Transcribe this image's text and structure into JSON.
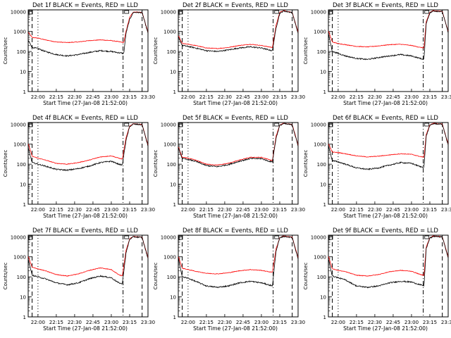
{
  "figure": {
    "layout": "3x3 grid",
    "background": "#ffffff",
    "axes_color": "#000000"
  },
  "chart_data": [
    {
      "type": "line",
      "title": "Det 1f BLACK = Events, RED = LLD",
      "ylabel": "Counts/sec",
      "xlabel": "Start Time (27-Jan-08 21:52:00)",
      "x_ticks": [
        "22:00",
        "22:15",
        "22:30",
        "22:45",
        "23:00",
        "23:15",
        "23:30"
      ],
      "y_ticks": [
        "1",
        "10",
        "100",
        "1000",
        "10000"
      ],
      "ylim": [
        1,
        12000
      ],
      "scale": "log",
      "x": [
        21.87,
        21.92,
        22.0,
        22.1,
        22.25,
        22.4,
        22.55,
        22.7,
        22.85,
        23.0,
        23.12,
        23.17,
        23.2,
        23.25,
        23.3,
        23.42,
        23.5
      ],
      "series": [
        {
          "name": "RED",
          "color": "#ff0000",
          "values": [
            900,
            500,
            470,
            380,
            300,
            280,
            300,
            350,
            380,
            350,
            300,
            280,
            1000,
            5000,
            9500,
            9000,
            900
          ]
        },
        {
          "name": "BLACK",
          "color": "#000000",
          "values": [
            350,
            160,
            140,
            100,
            70,
            60,
            70,
            90,
            110,
            100,
            85,
            80,
            800,
            4000,
            9000,
            8800,
            800
          ]
        }
      ]
    },
    {
      "type": "line",
      "title": "Det 2f BLACK = Events, RED = LLD",
      "ylabel": "Counts/sec",
      "xlabel": "Start Time (27-Jan-08 21:52:00)",
      "x_ticks": [
        "22:00",
        "22:15",
        "22:30",
        "22:45",
        "23:00",
        "23:15",
        "23:30"
      ],
      "y_ticks": [
        "1",
        "10",
        "100",
        "1000",
        "10000"
      ],
      "ylim": [
        1,
        12000
      ],
      "scale": "log",
      "x": [
        21.87,
        21.92,
        22.0,
        22.1,
        22.25,
        22.4,
        22.55,
        22.7,
        22.85,
        23.0,
        23.1,
        23.15,
        23.2,
        23.25,
        23.3,
        23.42,
        23.5
      ],
      "series": [
        {
          "name": "RED",
          "color": "#ff0000",
          "values": [
            600,
            250,
            230,
            200,
            150,
            140,
            160,
            200,
            230,
            200,
            170,
            160,
            2000,
            9000,
            11000,
            9000,
            900
          ]
        },
        {
          "name": "BLACK",
          "color": "#000000",
          "values": [
            500,
            200,
            180,
            150,
            110,
            100,
            120,
            150,
            170,
            150,
            120,
            110,
            1500,
            8000,
            10500,
            8800,
            800
          ]
        }
      ]
    },
    {
      "type": "line",
      "title": "Det 3f BLACK = Events, RED = LLD",
      "ylabel": "Counts/sec",
      "xlabel": "Start Time (27-Jan-08 21:52:00)",
      "x_ticks": [
        "22:00",
        "22:15",
        "22:30",
        "22:45",
        "23:00",
        "23:15",
        "23:30"
      ],
      "y_ticks": [
        "1",
        "10",
        "100",
        "1000",
        "10000"
      ],
      "ylim": [
        1,
        12000
      ],
      "scale": "log",
      "x": [
        21.87,
        21.92,
        22.0,
        22.1,
        22.25,
        22.4,
        22.55,
        22.7,
        22.85,
        23.0,
        23.12,
        23.17,
        23.2,
        23.25,
        23.3,
        23.42,
        23.5
      ],
      "series": [
        {
          "name": "RED",
          "color": "#ff0000",
          "values": [
            1000,
            300,
            250,
            220,
            180,
            170,
            190,
            220,
            230,
            200,
            160,
            150,
            3000,
            9000,
            11000,
            10000,
            1000
          ]
        },
        {
          "name": "BLACK",
          "color": "#000000",
          "values": [
            700,
            100,
            80,
            60,
            45,
            40,
            50,
            60,
            70,
            60,
            45,
            40,
            2500,
            8500,
            10500,
            9800,
            900
          ]
        }
      ]
    },
    {
      "type": "line",
      "title": "Det 4f BLACK = Events, RED = LLD",
      "ylabel": "Counts/sec",
      "xlabel": "Start Time (27-Jan-08 21:52:00)",
      "x_ticks": [
        "22:00",
        "22:15",
        "22:30",
        "22:45",
        "23:00",
        "23:15",
        "23:30"
      ],
      "y_ticks": [
        "1",
        "10",
        "100",
        "1000",
        "10000"
      ],
      "ylim": [
        1,
        12000
      ],
      "scale": "log",
      "x": [
        21.87,
        21.92,
        22.0,
        22.1,
        22.25,
        22.4,
        22.55,
        22.7,
        22.85,
        23.0,
        23.1,
        23.15,
        23.2,
        23.25,
        23.3,
        23.42,
        23.5
      ],
      "series": [
        {
          "name": "RED",
          "color": "#ff0000",
          "values": [
            1000,
            250,
            200,
            160,
            110,
            100,
            120,
            160,
            230,
            260,
            200,
            180,
            2000,
            8000,
            10500,
            9500,
            900
          ]
        },
        {
          "name": "BLACK",
          "color": "#000000",
          "values": [
            600,
            120,
            100,
            80,
            55,
            50,
            60,
            80,
            120,
            140,
            100,
            90,
            1500,
            7500,
            10000,
            9300,
            800
          ]
        }
      ]
    },
    {
      "type": "line",
      "title": "Det 5f BLACK = Events, RED = LLD",
      "ylabel": "Counts/sec",
      "xlabel": "Start Time (27-Jan-08 21:52:00)",
      "x_ticks": [
        "22:00",
        "22:15",
        "22:30",
        "22:45",
        "23:00",
        "23:15",
        "23:30"
      ],
      "y_ticks": [
        "1",
        "10",
        "100",
        "1000",
        "10000"
      ],
      "ylim": [
        1,
        12000
      ],
      "scale": "log",
      "x": [
        21.87,
        21.92,
        22.0,
        22.1,
        22.25,
        22.4,
        22.55,
        22.7,
        22.85,
        23.0,
        23.1,
        23.15,
        23.2,
        23.25,
        23.3,
        23.42,
        23.5
      ],
      "series": [
        {
          "name": "RED",
          "color": "#ff0000",
          "values": [
            700,
            220,
            200,
            160,
            100,
            90,
            110,
            160,
            220,
            220,
            170,
            150,
            2500,
            9000,
            11000,
            9500,
            900
          ]
        },
        {
          "name": "BLACK",
          "color": "#000000",
          "values": [
            600,
            190,
            170,
            140,
            85,
            75,
            95,
            140,
            190,
            190,
            140,
            130,
            2000,
            8500,
            10500,
            9300,
            800
          ]
        }
      ]
    },
    {
      "type": "line",
      "title": "Det 6f BLACK = Events, RED = LLD",
      "ylabel": "Counts/sec",
      "xlabel": "Start Time (27-Jan-08 21:52:00)",
      "x_ticks": [
        "22:00",
        "22:15",
        "22:30",
        "22:45",
        "23:00",
        "23:15",
        "23:30"
      ],
      "y_ticks": [
        "1",
        "10",
        "100",
        "1000",
        "10000"
      ],
      "ylim": [
        1,
        12000
      ],
      "scale": "log",
      "x": [
        21.87,
        21.92,
        22.0,
        22.1,
        22.25,
        22.4,
        22.55,
        22.7,
        22.85,
        23.0,
        23.12,
        23.17,
        23.2,
        23.25,
        23.3,
        23.42,
        23.5
      ],
      "series": [
        {
          "name": "RED",
          "color": "#ff0000",
          "values": [
            1000,
            400,
            380,
            330,
            260,
            230,
            250,
            290,
            330,
            310,
            240,
            220,
            3000,
            9000,
            11000,
            10000,
            1000
          ]
        },
        {
          "name": "BLACK",
          "color": "#000000",
          "values": [
            800,
            150,
            130,
            100,
            65,
            55,
            65,
            90,
            120,
            110,
            75,
            70,
            2500,
            8500,
            10500,
            9800,
            900
          ]
        }
      ]
    },
    {
      "type": "line",
      "title": "Det 7f BLACK = Events, RED = LLD",
      "ylabel": "Counts/sec",
      "xlabel": "Start Time (27-Jan-08 21:52:00)",
      "x_ticks": [
        "22:00",
        "22:15",
        "22:30",
        "22:45",
        "23:00",
        "23:15",
        "23:30"
      ],
      "y_ticks": [
        "1",
        "10",
        "100",
        "1000",
        "10000"
      ],
      "ylim": [
        1,
        12000
      ],
      "scale": "log",
      "x": [
        21.87,
        21.92,
        22.0,
        22.1,
        22.25,
        22.4,
        22.55,
        22.7,
        22.85,
        23.0,
        23.1,
        23.15,
        23.2,
        23.25,
        23.3,
        23.42,
        23.5
      ],
      "series": [
        {
          "name": "RED",
          "color": "#ff0000",
          "values": [
            1000,
            300,
            250,
            200,
            130,
            110,
            140,
            210,
            280,
            230,
            130,
            110,
            2000,
            8000,
            10500,
            9500,
            900
          ]
        },
        {
          "name": "BLACK",
          "color": "#000000",
          "values": [
            700,
            120,
            100,
            80,
            50,
            40,
            50,
            80,
            110,
            90,
            50,
            45,
            1500,
            7500,
            10000,
            9300,
            800
          ]
        }
      ]
    },
    {
      "type": "line",
      "title": "Det 8f BLACK = Events, RED = LLD",
      "ylabel": "Counts/sec",
      "xlabel": "Start Time (27-Jan-08 21:52:00)",
      "x_ticks": [
        "22:00",
        "22:15",
        "22:30",
        "22:45",
        "23:00",
        "23:15",
        "23:30"
      ],
      "y_ticks": [
        "1",
        "10",
        "100",
        "1000",
        "10000"
      ],
      "ylim": [
        1,
        12000
      ],
      "scale": "log",
      "x": [
        21.87,
        21.92,
        22.0,
        22.1,
        22.25,
        22.4,
        22.55,
        22.7,
        22.85,
        23.0,
        23.1,
        23.15,
        23.2,
        23.25,
        23.3,
        23.42,
        23.5
      ],
      "series": [
        {
          "name": "RED",
          "color": "#ff0000",
          "values": [
            1000,
            270,
            230,
            190,
            150,
            140,
            160,
            200,
            230,
            210,
            180,
            170,
            2500,
            9000,
            11000,
            9500,
            900
          ]
        },
        {
          "name": "BLACK",
          "color": "#000000",
          "values": [
            800,
            100,
            85,
            60,
            35,
            30,
            35,
            50,
            60,
            50,
            40,
            35,
            2000,
            8500,
            10500,
            9300,
            800
          ]
        }
      ]
    },
    {
      "type": "line",
      "title": "Det 9f BLACK = Events, RED = LLD",
      "ylabel": "Counts/sec",
      "xlabel": "Start Time (27-Jan-08 21:52:00)",
      "x_ticks": [
        "22:00",
        "22:15",
        "22:30",
        "22:45",
        "23:00",
        "23:15",
        "23:30"
      ],
      "y_ticks": [
        "1",
        "10",
        "100",
        "1000",
        "10000"
      ],
      "ylim": [
        1,
        12000
      ],
      "scale": "log",
      "x": [
        21.87,
        21.92,
        22.0,
        22.1,
        22.25,
        22.4,
        22.55,
        22.7,
        22.85,
        23.0,
        23.12,
        23.17,
        23.2,
        23.25,
        23.3,
        23.42,
        23.5
      ],
      "series": [
        {
          "name": "RED",
          "color": "#ff0000",
          "values": [
            1000,
            250,
            210,
            180,
            120,
            110,
            130,
            180,
            210,
            190,
            130,
            120,
            3000,
            9000,
            11000,
            10000,
            1000
          ]
        },
        {
          "name": "BLACK",
          "color": "#000000",
          "values": [
            700,
            110,
            90,
            70,
            35,
            30,
            35,
            50,
            60,
            55,
            40,
            35,
            2500,
            8500,
            10500,
            9800,
            900
          ]
        }
      ]
    }
  ]
}
